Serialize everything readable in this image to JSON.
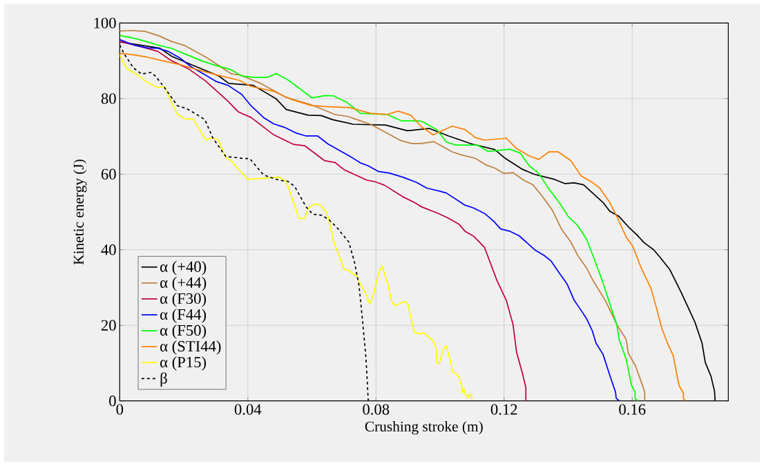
{
  "chart_data": {
    "type": "line",
    "xlabel": "Crushing stroke (m)",
    "ylabel": "Kinetic energy (J)",
    "xlim": [
      0,
      0.19
    ],
    "ylim": [
      0,
      100
    ],
    "xticks": [
      0,
      0.04,
      0.08,
      0.12,
      0.16
    ],
    "yticks": [
      0,
      20,
      40,
      60,
      80,
      100
    ],
    "grid": true,
    "legend": "bottom left",
    "series": [
      {
        "name": "α (+40)",
        "color": "#000000",
        "line_style": "solid",
        "x": [
          0,
          0.0126,
          0.0162,
          0.0223,
          0.0309,
          0.0341,
          0.0417,
          0.0489,
          0.052,
          0.0589,
          0.0629,
          0.0665,
          0.0729,
          0.083,
          0.0898,
          0.0966,
          0.1027,
          0.1099,
          0.1171,
          0.12,
          0.1257,
          0.1293,
          0.1358,
          0.139,
          0.1419,
          0.1448,
          0.1509,
          0.153,
          0.1559,
          0.1591,
          0.1616,
          0.1638,
          0.1667,
          0.1688,
          0.1717,
          0.1753,
          0.1796,
          0.1818,
          0.1828,
          0.1846,
          0.1857,
          0.1859
        ],
        "values": [
          95,
          93.3,
          91.2,
          89,
          86,
          84,
          83.5,
          79.9,
          77.1,
          75.6,
          75.5,
          74.4,
          73.2,
          73,
          71.5,
          72.1,
          70.1,
          68,
          66.5,
          64.4,
          61.3,
          60,
          58.6,
          57.5,
          57.7,
          57.2,
          52.5,
          50.2,
          48.8,
          45.8,
          43.8,
          41.8,
          40,
          37.9,
          34.8,
          28.7,
          20.8,
          15.3,
          10.2,
          6.5,
          2.6,
          0
        ]
      },
      {
        "name": "α (+44)",
        "color": "#bf8040",
        "line_style": "solid",
        "x": [
          0,
          0.004,
          0.0079,
          0.0122,
          0.0162,
          0.0201,
          0.0273,
          0.0349,
          0.0374,
          0.0438,
          0.0517,
          0.0596,
          0.0672,
          0.0711,
          0.0783,
          0.0877,
          0.0912,
          0.0941,
          0.0981,
          0.1038,
          0.1071,
          0.111,
          0.1142,
          0.1171,
          0.12,
          0.1228,
          0.1261,
          0.129,
          0.1318,
          0.1351,
          0.1379,
          0.1408,
          0.143,
          0.1458,
          0.148,
          0.1516,
          0.1552,
          0.1581,
          0.1588,
          0.161,
          0.1631,
          0.1639,
          0.1639
        ],
        "values": [
          97.9,
          98,
          97.8,
          96.6,
          95.1,
          94.1,
          90.8,
          86.5,
          86.3,
          84.1,
          80.4,
          78.4,
          75.8,
          75.3,
          73.2,
          68.9,
          68.1,
          68.1,
          68.6,
          65.9,
          65,
          64.2,
          62.5,
          61.6,
          60.2,
          60.4,
          58.4,
          57.2,
          54.3,
          50.4,
          45.5,
          42.1,
          38.5,
          35.1,
          31.5,
          26.6,
          20.2,
          16.3,
          12.6,
          9.3,
          4.4,
          2.3,
          0
        ]
      },
      {
        "name": "α (F30)",
        "color": "#c00040",
        "line_style": "solid",
        "x": [
          0,
          0.0058,
          0.0119,
          0.0158,
          0.0216,
          0.0269,
          0.0338,
          0.037,
          0.041,
          0.0481,
          0.0542,
          0.0578,
          0.0639,
          0.0672,
          0.07,
          0.0772,
          0.0797,
          0.0826,
          0.0884,
          0.092,
          0.0941,
          0.0995,
          0.1027,
          0.106,
          0.1078,
          0.1106,
          0.1139,
          0.1178,
          0.1207,
          0.1228,
          0.1239,
          0.1257,
          0.1268,
          0.1268
        ],
        "values": [
          95.1,
          93.9,
          92.5,
          90.2,
          87.8,
          84.6,
          79.3,
          76.5,
          75,
          70.4,
          67.9,
          67.5,
          63.6,
          63.1,
          61.2,
          58.4,
          58,
          57.1,
          54,
          52.5,
          51.4,
          49.6,
          48.3,
          46.7,
          44.9,
          43.5,
          40.6,
          31.8,
          26.6,
          20.2,
          12.9,
          7.4,
          3.5,
          0
        ]
      },
      {
        "name": "α (F44)",
        "color": "#0000ff",
        "line_style": "solid",
        "x": [
          0,
          0.0043,
          0.0086,
          0.0119,
          0.0151,
          0.0187,
          0.0223,
          0.0266,
          0.0302,
          0.0338,
          0.0381,
          0.041,
          0.0449,
          0.0481,
          0.0517,
          0.055,
          0.0582,
          0.0618,
          0.065,
          0.0719,
          0.0751,
          0.0776,
          0.0808,
          0.0841,
          0.0884,
          0.0927,
          0.0959,
          0.0999,
          0.102,
          0.1078,
          0.1106,
          0.1139,
          0.1167,
          0.1189,
          0.1218,
          0.1247,
          0.1268,
          0.1297,
          0.1325,
          0.1347,
          0.1372,
          0.1397,
          0.1419,
          0.1441,
          0.1458,
          0.1476,
          0.1487,
          0.1509,
          0.153,
          0.1548,
          0.155,
          0.156
        ],
        "values": [
          95.6,
          94.2,
          93.4,
          93.3,
          92.5,
          90.8,
          88.4,
          86.3,
          84.5,
          83.5,
          81.1,
          78.1,
          75,
          73.3,
          72.3,
          70.9,
          70.1,
          70.1,
          68,
          64.7,
          63,
          62.2,
          60.7,
          60.3,
          59.2,
          57.8,
          56.3,
          55.5,
          55,
          51.8,
          51,
          49.6,
          47.6,
          45.5,
          44.9,
          43.7,
          42.1,
          39.9,
          38.5,
          37,
          33.9,
          30.9,
          26.6,
          23.9,
          21.7,
          18.4,
          15.3,
          12.3,
          6.8,
          2.3,
          0.7,
          0
        ]
      },
      {
        "name": "α (F50)",
        "color": "#00ff00",
        "line_style": "solid",
        "x": [
          0,
          0.0043,
          0.0079,
          0.0122,
          0.0162,
          0.0201,
          0.0259,
          0.0302,
          0.0349,
          0.0381,
          0.0417,
          0.046,
          0.0489,
          0.0528,
          0.06,
          0.0643,
          0.0668,
          0.0711,
          0.0751,
          0.0833,
          0.0848,
          0.088,
          0.0934,
          0.0948,
          0.0991,
          0.102,
          0.1049,
          0.1117,
          0.115,
          0.1218,
          0.125,
          0.1279,
          0.1308,
          0.134,
          0.1372,
          0.1401,
          0.143,
          0.1458,
          0.148,
          0.1509,
          0.1537,
          0.1552,
          0.1559,
          0.1581,
          0.1598,
          0.1609,
          0.1609,
          0.1618
        ],
        "values": [
          96.7,
          96,
          95.2,
          94.1,
          93.3,
          91.9,
          89.9,
          88.7,
          87.6,
          86,
          85.6,
          85.6,
          86.6,
          84.8,
          80.2,
          80.8,
          80.7,
          78.9,
          76.1,
          75.8,
          75.3,
          74.1,
          74.1,
          73.8,
          71.7,
          68.5,
          67.7,
          67.7,
          66,
          66.6,
          65.6,
          62.2,
          60.2,
          56.1,
          52.5,
          48.7,
          46.4,
          42.7,
          37.9,
          31.2,
          23.9,
          20.2,
          16.3,
          11.1,
          4.1,
          2.3,
          0.7,
          0
        ]
      },
      {
        "name": "α (STI44)",
        "color": "#ff8000",
        "line_style": "solid",
        "x": [
          0,
          0.0043,
          0.0079,
          0.0144,
          0.0187,
          0.0244,
          0.0302,
          0.0374,
          0.041,
          0.0478,
          0.0532,
          0.0596,
          0.0643,
          0.0719,
          0.0783,
          0.0837,
          0.0869,
          0.0909,
          0.0941,
          0.0978,
          0.1038,
          0.1078,
          0.111,
          0.1139,
          0.1207,
          0.1239,
          0.1279,
          0.1308,
          0.134,
          0.1369,
          0.1408,
          0.1441,
          0.1469,
          0.1498,
          0.153,
          0.1552,
          0.1581,
          0.1602,
          0.1627,
          0.1659,
          0.1678,
          0.1692,
          0.171,
          0.1728,
          0.1746,
          0.176,
          0.176,
          0.1767
        ],
        "values": [
          92,
          91.6,
          91.1,
          89.8,
          89,
          87.6,
          86.3,
          84.8,
          83.2,
          82,
          79.9,
          78.2,
          77.9,
          77.6,
          76.1,
          75.8,
          76.7,
          75.6,
          72.6,
          70.4,
          72.7,
          71.8,
          69.7,
          69,
          69.5,
          66.8,
          64.8,
          63.9,
          65.9,
          65.9,
          63.6,
          59.5,
          58.2,
          56.4,
          52.5,
          48.8,
          43.4,
          40.9,
          35.4,
          29.7,
          23.9,
          19.3,
          15.3,
          12,
          4.1,
          2,
          0.6,
          0
        ]
      },
      {
        "name": "α (P15)",
        "color": "#ffff00",
        "line_style": "solid",
        "x": [
          0,
          0.002,
          0.0058,
          0.009,
          0.0119,
          0.014,
          0.0158,
          0.018,
          0.0201,
          0.023,
          0.0269,
          0.0291,
          0.0309,
          0.0331,
          0.0348,
          0.0399,
          0.0499,
          0.052,
          0.056,
          0.0578,
          0.0589,
          0.0611,
          0.0629,
          0.0647,
          0.0658,
          0.0668,
          0.069,
          0.07,
          0.0711,
          0.074,
          0.0751,
          0.0769,
          0.078,
          0.079,
          0.0808,
          0.0819,
          0.0837,
          0.0848,
          0.0859,
          0.0891,
          0.0898,
          0.092,
          0.0938,
          0.0948,
          0.0977,
          0.0988,
          0.0989,
          0.0998,
          0.1009,
          0.1019,
          0.1031,
          0.104,
          0.105,
          0.106,
          0.1062,
          0.1069,
          0.1069,
          0.1076,
          0.1079,
          0.1088,
          0.109,
          0.1099,
          0.1099
        ],
        "values": [
          91.5,
          88.1,
          86.1,
          84.1,
          82.9,
          83.2,
          79.6,
          75.9,
          74.7,
          74.5,
          69,
          69.7,
          68.8,
          64.4,
          63.5,
          58.6,
          59.2,
          58,
          48.3,
          48.3,
          51.1,
          52.2,
          51.6,
          49.8,
          45.8,
          42.1,
          37.3,
          34.8,
          34.7,
          33,
          30.9,
          28.1,
          25.7,
          27.5,
          33.6,
          35.7,
          30.9,
          26.6,
          25.2,
          26.3,
          26,
          18.1,
          17.7,
          18.1,
          16,
          14.1,
          10.2,
          9.7,
          13.5,
          14.6,
          11.1,
          7.6,
          7.3,
          6.2,
          5.3,
          3.7,
          2.1,
          3.2,
          1.6,
          0.9,
          1.6,
          1.6,
          0.3
        ]
      },
      {
        "name": "β",
        "color": "#000000",
        "line_style": "dashed",
        "x": [
          0,
          0.0014,
          0.0043,
          0.0068,
          0.0097,
          0.0111,
          0.014,
          0.018,
          0.0208,
          0.0244,
          0.0266,
          0.0291,
          0.0331,
          0.0381,
          0.0406,
          0.0431,
          0.0449,
          0.0489,
          0.0507,
          0.0525,
          0.0546,
          0.0582,
          0.0603,
          0.0632,
          0.0654,
          0.0679,
          0.0693,
          0.0715,
          0.0733,
          0.0747,
          0.0758,
          0.0769,
          0.0776
        ],
        "values": [
          94.2,
          91.8,
          88.1,
          86.5,
          86.9,
          86,
          82.9,
          78.1,
          77.4,
          75.6,
          74.4,
          69.5,
          64.7,
          64.2,
          64.1,
          61.6,
          59.8,
          58.6,
          58.3,
          58.1,
          56.8,
          51.3,
          49.4,
          49.1,
          47.9,
          45.8,
          44.3,
          42.1,
          36.7,
          30.6,
          21.4,
          11.1,
          0
        ]
      }
    ]
  }
}
